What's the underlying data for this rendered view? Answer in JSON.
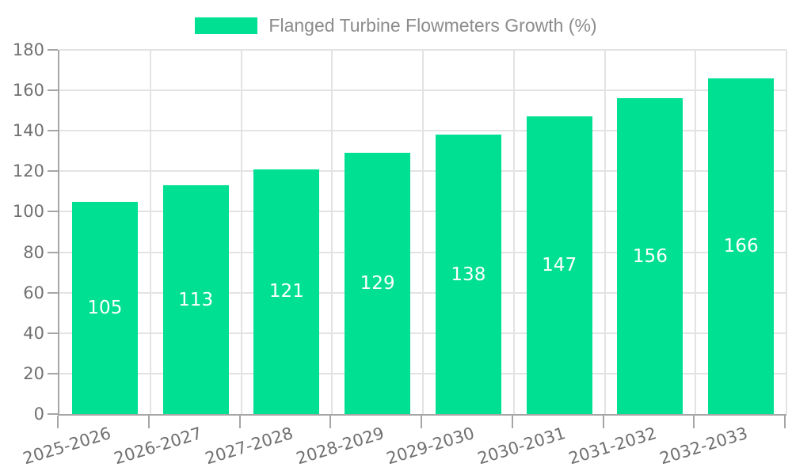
{
  "chart_data": {
    "type": "bar",
    "title": "",
    "legend": "Flanged Turbine Flowmeters Growth (%)",
    "legend_position": "top",
    "categories": [
      "2025-2026",
      "2026-2027",
      "2027-2028",
      "2028-2029",
      "2029-2030",
      "2030-2031",
      "2031-2032",
      "2032-2033"
    ],
    "values": [
      105,
      113,
      121,
      129,
      138,
      147,
      156,
      166
    ],
    "value_labels": [
      "105",
      "113",
      "121",
      "129",
      "138",
      "147",
      "156",
      "166"
    ],
    "value_labels_position": "inside-center",
    "xlabel": "",
    "ylabel": "",
    "ylim": [
      0,
      180
    ],
    "y_tick_step": 20,
    "y_tick_labels": [
      "0",
      "20",
      "40",
      "60",
      "80",
      "100",
      "120",
      "140",
      "160",
      "180"
    ],
    "grid": true,
    "colors": {
      "bar": "#00E092",
      "value_label": "#ffffff",
      "axis_text": "#707070",
      "legend_text": "#8c8c8c",
      "grid_line": "#e3e3e3",
      "axis_line": "#a6a6a6"
    }
  }
}
